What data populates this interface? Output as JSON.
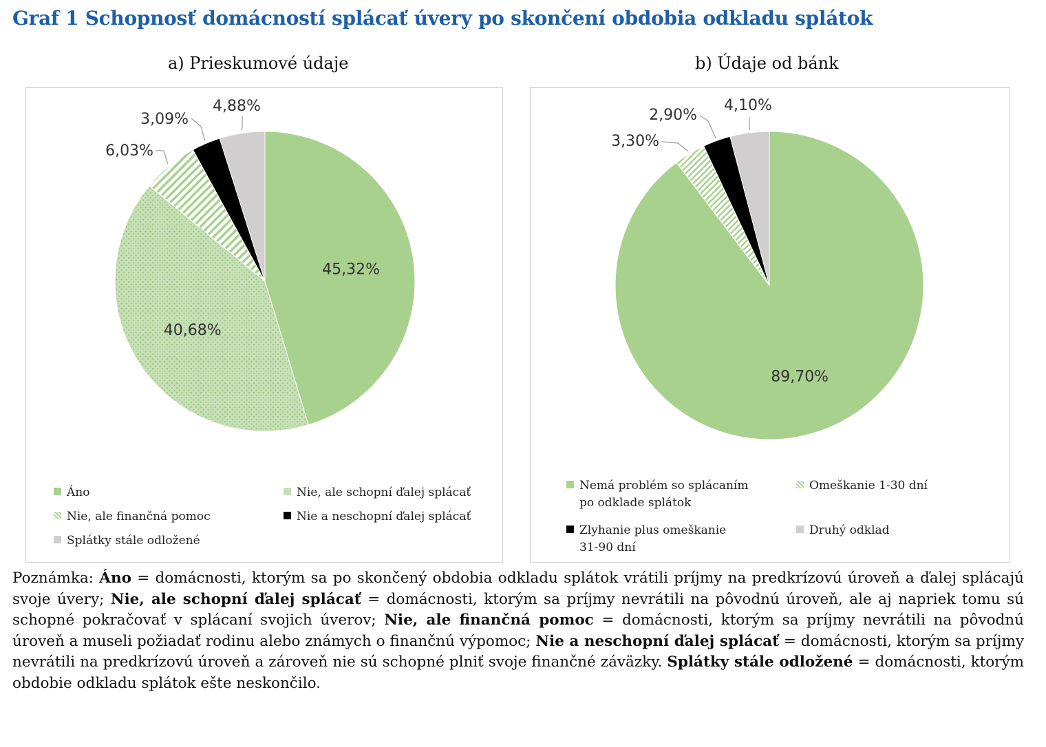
{
  "title": "Graf 1 Schopnosť domácností splácať úvery po skončení obdobia odkladu splátok",
  "chart_data": [
    {
      "type": "pie",
      "title": "a) Prieskumové údaje",
      "categories": [
        "Áno",
        "Nie, ale schopní ďalej splácať",
        "Nie, ale finančná pomoc",
        "Nie a neschopní ďalej splácať",
        "Splátky stále odložené"
      ],
      "values": [
        45.32,
        40.68,
        6.03,
        3.09,
        4.88
      ],
      "labels": [
        "45,32%",
        "40,68%",
        "6,03%",
        "3,09%",
        "4,88%"
      ],
      "colors": [
        "#a9d18e",
        "#c5e0b4",
        "#ffffff",
        "#000000",
        "#d0cece"
      ],
      "patterns": [
        "solid",
        "dots",
        "stripes",
        "solid",
        "solid"
      ],
      "legend_position": "bottom"
    },
    {
      "type": "pie",
      "title": "b) Údaje od bánk",
      "categories": [
        "Nemá problém so splácaním po odklade splátok",
        "Omeškanie 1-30 dní",
        "Zlyhanie plus omeškanie 31-90 dní",
        "Druhý odklad"
      ],
      "values": [
        89.7,
        3.3,
        2.9,
        4.1
      ],
      "labels": [
        "89,70%",
        "3,30%",
        "2,90%",
        "4,10%"
      ],
      "colors": [
        "#a9d18e",
        "#ffffff",
        "#000000",
        "#d0cece"
      ],
      "patterns": [
        "solid",
        "stripes",
        "solid",
        "solid"
      ],
      "legend_position": "bottom"
    }
  ],
  "legend_a": {
    "ano": "Áno",
    "nie_schopni": "Nie, ale schopní ďalej splácať",
    "nie_pomoc": "Nie, ale finančná pomoc",
    "nie_neschopni": "Nie a neschopní ďalej splácať",
    "odlozene": "Splátky stále odložené"
  },
  "legend_b": {
    "nema_problem_1": "Nemá problém so splácaním",
    "nema_problem_2": "po odklade splátok",
    "omeskanie": "Omeškanie 1-30 dní",
    "zlyhanie_1": "Zlyhanie plus omeškanie",
    "zlyhanie_2": "31-90 dní",
    "druhy": "Druhý odklad"
  },
  "note": {
    "prefix": "Poznámka: ",
    "t1": "Áno",
    "d1": " = domácnosti, ktorým sa po skončený obdobia odkladu splátok vrátili príjmy na predkrízovú úroveň a ďalej splácajú svoje úvery; ",
    "t2": "Nie, ale schopní ďalej splácať",
    "d2": " = domácnosti, ktorým sa príjmy nevrátili na pôvodnú úroveň, ale aj napriek tomu sú schopné pokračovať v splácaní svojich úverov; ",
    "t3": "Nie, ale finančná pomoc",
    "d3": " = domácnosti, ktorým sa príjmy nevrátili na pôvodnú úroveň a museli požiadať rodinu alebo známych o finančnú výpomoc; ",
    "t4": "Nie a neschopní ďalej splácať",
    "d4": " = domácnosti, ktorým sa príjmy nevrátili na predkrízovú úroveň a zároveň nie sú schopné plniť svoje finančné záväzky. ",
    "t5": "Splátky stále odložené",
    "d5": " = domácnosti, ktorým obdobie odkladu splátok ešte neskončilo."
  }
}
